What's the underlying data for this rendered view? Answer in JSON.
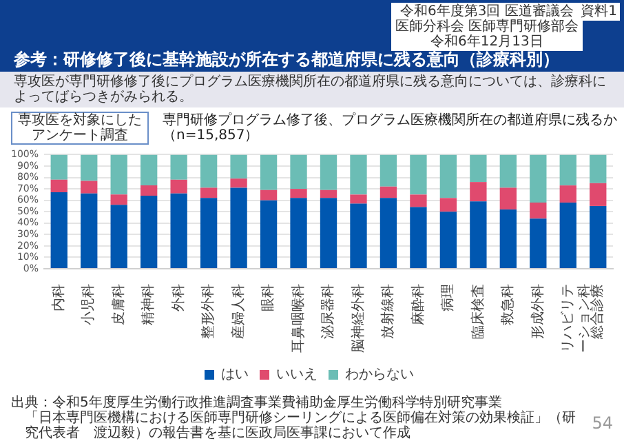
{
  "chart_data": {
    "type": "bar",
    "title": "専門研修プログラム修了後、プログラム医療機関所在の都道府県に残るか（n=15,857）",
    "subtitle": "専攻医が専門研修修了後にプログラム医療機関所在の都道府県に残る意向については、診療科によってばらつきがみられる。",
    "annotations": [
      "参考：研修修了後に基幹施設が所在する都道府県に残る意向（診療科別）",
      "令和6年度第3回 医道審議会",
      "医師分科会 医師専門研修部会",
      "令和6年12月13日",
      "資料1",
      "専攻医を対象にしたアンケート調査",
      "出典：令和5年度厚生労働行政推進調査事業費補助金厚生労働科学特別研究事業",
      "「日本専門医機構における医師専門研修シーリングによる医師偏在対策の効果検証」（研究代表者　渡辺毅）の報告書を基に医政局医事課において作成",
      "54"
    ],
    "categories": [
      "内科",
      "小児科",
      "皮膚科",
      "精神科",
      "外科",
      "整形外科",
      "産婦人科",
      "眼科",
      "耳鼻咽喉科",
      "泌尿器科",
      "脳神経外科",
      "放射線科",
      "麻酔科",
      "病理",
      "臨床検査",
      "救急科",
      "形成外科",
      "リハビリテーション科",
      "総合診療"
    ],
    "stacked": true,
    "series": [
      {
        "name": "はい",
        "color": "#0057b0",
        "values": [
          67,
          66,
          56,
          64,
          66,
          62,
          71,
          60,
          62,
          62,
          57,
          62,
          54,
          50,
          59,
          52,
          44,
          58,
          55
        ]
      },
      {
        "name": "いいえ",
        "color": "#e04a6e",
        "values": [
          11,
          11,
          9,
          9,
          12,
          9,
          8,
          9,
          8,
          7,
          8,
          10,
          11,
          12,
          17,
          19,
          14,
          15,
          20
        ]
      },
      {
        "name": "わからない",
        "color": "#6bbdb5",
        "values": [
          22,
          23,
          35,
          27,
          22,
          29,
          21,
          31,
          30,
          31,
          35,
          28,
          35,
          38,
          24,
          29,
          42,
          27,
          25
        ]
      }
    ],
    "ylim": [
      0,
      100
    ],
    "yticks": [
      {
        "value": 0,
        "label": "0%"
      },
      {
        "value": 10,
        "label": "10%"
      },
      {
        "value": 20,
        "label": "20%"
      },
      {
        "value": 30,
        "label": "30%"
      },
      {
        "value": 40,
        "label": "40%"
      },
      {
        "value": 50,
        "label": "50%"
      },
      {
        "value": 60,
        "label": "60%"
      },
      {
        "value": 70,
        "label": "70%"
      },
      {
        "value": 80,
        "label": "80%"
      },
      {
        "value": 90,
        "label": "90%"
      },
      {
        "value": 100,
        "label": "100%"
      }
    ],
    "grid": "y",
    "legend": "bottom"
  }
}
